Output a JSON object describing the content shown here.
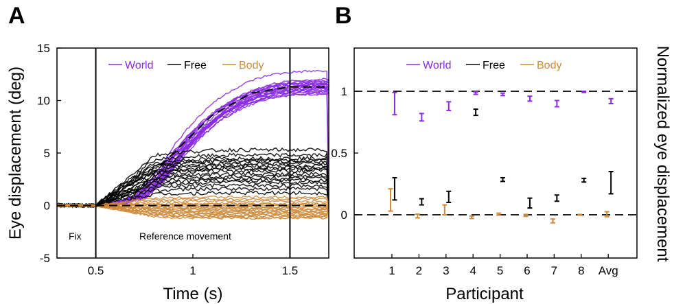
{
  "colors": {
    "world": "#8a2be2",
    "free": "#000000",
    "body": "#cd8a3a"
  },
  "panels": {
    "a_label": "A",
    "b_label": "B"
  },
  "chart_data": [
    {
      "type": "line",
      "panel": "A",
      "xlabel": "Time (s)",
      "ylabel": "Eye displacement (deg)",
      "xlim": [
        0.3,
        1.7
      ],
      "ylim": [
        -5,
        15
      ],
      "xticks": [
        "0.5",
        "1",
        "1.5"
      ],
      "yticks": [
        "15",
        "10",
        "5",
        "0",
        "-5"
      ],
      "legend": [
        "World",
        "Free",
        "Body"
      ],
      "legend_position": "top",
      "vlines": [
        0.5,
        1.5
      ],
      "annotations": [
        "Fix",
        "Reference movement"
      ],
      "dashed_references": [
        {
          "name": "World expected",
          "x": [
            0.3,
            0.5,
            0.7,
            0.9,
            1.1,
            1.3,
            1.5,
            1.7
          ],
          "y": [
            0,
            0,
            1.2,
            5.0,
            8.6,
            10.7,
            11.3,
            11.3
          ]
        },
        {
          "name": "Body expected",
          "x": [
            0.3,
            1.7
          ],
          "y": [
            0,
            0
          ]
        }
      ],
      "series": [
        {
          "name": "World",
          "color_key": "world",
          "n_traces": 20,
          "final_values": [
            10.6,
            10.9,
            11.1,
            11.3,
            11.5,
            11.6,
            11.8,
            12.0,
            11.2,
            11.0,
            11.4,
            11.7,
            10.8,
            11.5,
            11.9,
            12.8,
            11.3,
            11.1,
            10.7,
            11.6
          ],
          "x": [
            0.3,
            0.5,
            0.6,
            0.7,
            0.8,
            0.9,
            1.0,
            1.1,
            1.2,
            1.3,
            1.4,
            1.5,
            1.6,
            1.7
          ],
          "mean_shape": [
            0.05,
            0,
            0.3,
            0.8,
            2.5,
            5.0,
            7.0,
            8.6,
            9.7,
            10.5,
            11.0,
            11.2,
            11.3,
            11.3
          ]
        },
        {
          "name": "Free",
          "color_key": "free",
          "n_traces": 18,
          "final_values": [
            5.3,
            4.8,
            4.5,
            4.3,
            4.2,
            4.0,
            3.8,
            3.6,
            3.5,
            3.3,
            3.0,
            2.8,
            2.6,
            2.4,
            2.2,
            1.9,
            1.6,
            1.2
          ],
          "x": [
            0.3,
            0.5,
            0.6,
            0.7,
            0.8,
            0.9,
            1.0,
            1.1,
            1.2,
            1.3,
            1.4,
            1.5,
            1.6,
            1.7
          ],
          "mean_shape": [
            0.1,
            0,
            0.3,
            0.6,
            0.9,
            0.95,
            0.97,
            0.99,
            1.0,
            1.0,
            1.0,
            1.0,
            1.0,
            1.0
          ]
        },
        {
          "name": "Body",
          "color_key": "body",
          "n_traces": 18,
          "final_values": [
            0.8,
            0.6,
            0.4,
            0.2,
            0.1,
            0.0,
            -0.1,
            -0.2,
            -0.3,
            -0.4,
            -0.5,
            -0.6,
            -0.7,
            -0.8,
            -0.9,
            -1.0,
            -1.1,
            -1.2
          ],
          "x": [
            0.3,
            0.5,
            0.6,
            0.7,
            0.8,
            0.9,
            1.0,
            1.1,
            1.2,
            1.3,
            1.4,
            1.5,
            1.6,
            1.7
          ],
          "mean_shape": [
            0.05,
            0,
            0.3,
            0.6,
            0.85,
            0.95,
            1.0,
            1.0,
            1.0,
            1.0,
            1.0,
            1.0,
            1.0,
            1.0
          ]
        }
      ]
    },
    {
      "type": "scatter",
      "panel": "B",
      "xlabel": "Participant",
      "ylabel": "Normalized eye displacement",
      "ylim": [
        -0.35,
        1.35
      ],
      "yticks": [
        "1",
        "0.5",
        "0"
      ],
      "categories": [
        "1",
        "2",
        "3",
        "4",
        "5",
        "6",
        "7",
        "8",
        "Avg"
      ],
      "legend": [
        "World",
        "Free",
        "Body"
      ],
      "legend_position": "top",
      "dashed_references": [
        0,
        1
      ],
      "series": [
        {
          "name": "World",
          "color_key": "world",
          "offset": 0.1,
          "values": [
            0.9,
            0.79,
            0.88,
            0.985,
            0.975,
            0.94,
            0.9,
            0.995,
            0.92
          ],
          "errors": [
            0.09,
            0.03,
            0.035,
            0.01,
            0.01,
            0.02,
            0.025,
            0.005,
            0.02
          ]
        },
        {
          "name": "Free",
          "color_key": "free",
          "offset": 0.1,
          "values": [
            0.21,
            0.105,
            0.145,
            0.83,
            0.285,
            0.095,
            0.135,
            0.28,
            0.26
          ],
          "errors": [
            0.09,
            0.025,
            0.045,
            0.025,
            0.015,
            0.04,
            0.025,
            0.015,
            0.09
          ]
        },
        {
          "name": "Body",
          "color_key": "body",
          "offset": -0.05,
          "values": [
            0.12,
            -0.01,
            0.04,
            -0.02,
            0.005,
            -0.005,
            -0.05,
            0.0,
            0.005
          ],
          "errors": [
            0.09,
            0.015,
            0.04,
            0.01,
            0.008,
            0.008,
            0.015,
            0.003,
            0.02
          ]
        }
      ]
    }
  ]
}
